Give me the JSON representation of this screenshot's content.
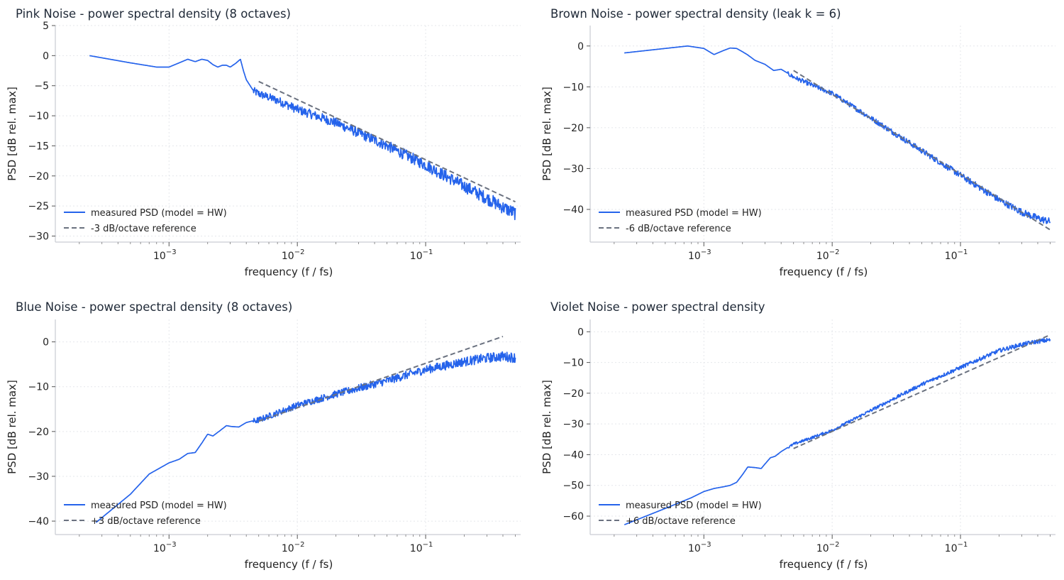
{
  "figure": {
    "xlabel": "frequency  (f / fs)",
    "ylabel": "PSD  [dB rel. max]",
    "xtick_labels": [
      "10",
      "10",
      "10"
    ],
    "xtick_exponents": [
      "−3",
      "−2",
      "−1"
    ],
    "xtick_values": [
      0.001,
      0.01,
      0.1
    ],
    "colors": {
      "measured": "#2563eb",
      "reference": "#6b7280",
      "grid": "#e5e7eb",
      "axis": "#c9ccd3",
      "text": "#222222",
      "title": "#1f2937"
    }
  },
  "chart_data": [
    {
      "type": "line",
      "title": "Pink Noise - power spectral density (8 octaves)",
      "xlabel": "frequency  (f / fs)",
      "ylabel": "PSD  [dB rel. max]",
      "xscale": "log",
      "xlim": [
        0.00013,
        0.55
      ],
      "ylim": [
        -31,
        5
      ],
      "yticks": [
        5,
        0,
        -5,
        -10,
        -15,
        -20,
        -25,
        -30
      ],
      "ytick_labels": [
        "5",
        "0",
        "−5",
        "−10",
        "−15",
        "−20",
        "−25",
        "−30"
      ],
      "grid": true,
      "legend_position": "lower-left",
      "series": [
        {
          "name": "measured PSD (model = HW)",
          "style": "solid",
          "noise_db": 1.4,
          "x": [
            0.00024,
            0.0005,
            0.0008,
            0.001,
            0.0012,
            0.0014,
            0.0016,
            0.0018,
            0.002,
            0.0022,
            0.0024,
            0.0026,
            0.0028,
            0.003,
            0.0033,
            0.0036,
            0.0038,
            0.004,
            0.0045,
            0.005,
            0.007,
            0.01,
            0.02,
            0.05,
            0.1,
            0.2,
            0.3,
            0.4,
            0.5
          ],
          "y": [
            0,
            -1.2,
            -1.9,
            -1.9,
            -1.2,
            -0.6,
            -1.0,
            -0.6,
            -0.8,
            -1.5,
            -1.9,
            -1.6,
            -1.6,
            -1.9,
            -1.3,
            -0.6,
            -2.5,
            -4.0,
            -5.7,
            -6.2,
            -7.3,
            -8.8,
            -11.0,
            -14.8,
            -18.0,
            -21.5,
            -23.5,
            -25.0,
            -26.0
          ]
        },
        {
          "name": "-3 dB/octave reference",
          "style": "dashed",
          "x": [
            0.005,
            0.5
          ],
          "y": [
            -4.3,
            -24.3
          ]
        }
      ]
    },
    {
      "type": "line",
      "title": "Brown Noise - power spectral density (leak k = 6)",
      "xlabel": "frequency  (f / fs)",
      "ylabel": "PSD  [dB rel. max]",
      "xscale": "log",
      "xlim": [
        0.00013,
        0.55
      ],
      "ylim": [
        -48,
        5
      ],
      "yticks": [
        0,
        -10,
        -20,
        -30,
        -40
      ],
      "ytick_labels": [
        "0",
        "−10",
        "−20",
        "−30",
        "−40"
      ],
      "grid": true,
      "legend_position": "lower-left",
      "series": [
        {
          "name": "measured PSD (model = HW)",
          "style": "solid",
          "noise_db": 1.1,
          "x": [
            0.00024,
            0.0005,
            0.00075,
            0.001,
            0.0012,
            0.0014,
            0.0016,
            0.0018,
            0.002,
            0.0022,
            0.0025,
            0.003,
            0.0035,
            0.004,
            0.005,
            0.007,
            0.01,
            0.02,
            0.05,
            0.1,
            0.2,
            0.3,
            0.4,
            0.5
          ],
          "y": [
            -1.7,
            -0.6,
            0,
            -0.6,
            -2.1,
            -1.2,
            -0.5,
            -0.6,
            -1.4,
            -2.2,
            -3.5,
            -4.5,
            -6.0,
            -5.7,
            -7.5,
            -9.5,
            -11.5,
            -17.5,
            -25.5,
            -31.5,
            -37.5,
            -40.5,
            -42.0,
            -42.8
          ]
        },
        {
          "name": "-6 dB/octave reference",
          "style": "dashed",
          "x": [
            0.005,
            0.5
          ],
          "y": [
            -6.0,
            -45.0
          ]
        }
      ]
    },
    {
      "type": "line",
      "title": "Blue Noise - power spectral density (8 octaves)",
      "xlabel": "frequency  (f / fs)",
      "ylabel": "PSD  [dB rel. max]",
      "xscale": "log",
      "xlim": [
        0.00013,
        0.55
      ],
      "ylim": [
        -43,
        5
      ],
      "yticks": [
        0,
        -10,
        -20,
        -30,
        -40
      ],
      "ytick_labels": [
        "0",
        "−10",
        "−20",
        "−30",
        "−40"
      ],
      "grid": true,
      "legend_position": "lower-left",
      "series": [
        {
          "name": "measured PSD (model = HW)",
          "style": "solid",
          "noise_db": 1.4,
          "x": [
            0.00027,
            0.0005,
            0.0007,
            0.001,
            0.0012,
            0.0014,
            0.0016,
            0.0018,
            0.002,
            0.0022,
            0.0025,
            0.0028,
            0.0031,
            0.0035,
            0.004,
            0.005,
            0.01,
            0.02,
            0.05,
            0.1,
            0.2,
            0.3,
            0.4,
            0.5
          ],
          "y": [
            -40.3,
            -34.0,
            -29.5,
            -27.0,
            -26.2,
            -24.9,
            -24.7,
            -22.6,
            -20.6,
            -21.0,
            -19.8,
            -18.7,
            -18.9,
            -19.0,
            -18.0,
            -17.3,
            -14.0,
            -11.5,
            -8.5,
            -6.0,
            -4.2,
            -3.4,
            -3.0,
            -3.3
          ]
        },
        {
          "name": "+3 dB/octave reference",
          "style": "dashed",
          "x": [
            0.005,
            0.4
          ],
          "y": [
            -17.7,
            1.2
          ]
        }
      ]
    },
    {
      "type": "line",
      "title": "Violet Noise - power spectral density",
      "xlabel": "frequency  (f / fs)",
      "ylabel": "PSD  [dB rel. max]",
      "xscale": "log",
      "xlim": [
        0.00013,
        0.55
      ],
      "ylim": [
        -66,
        4
      ],
      "yticks": [
        0,
        -10,
        -20,
        -30,
        -40,
        -50,
        -60
      ],
      "ytick_labels": [
        "0",
        "−10",
        "−20",
        "−30",
        "−40",
        "−50",
        "−60"
      ],
      "grid": true,
      "legend_position": "lower-left",
      "series": [
        {
          "name": "measured PSD (model = HW)",
          "style": "solid",
          "noise_db": 0.9,
          "x": [
            0.00024,
            0.0005,
            0.0008,
            0.001,
            0.0012,
            0.0014,
            0.0016,
            0.0018,
            0.002,
            0.0022,
            0.0025,
            0.0028,
            0.003,
            0.0033,
            0.0036,
            0.004,
            0.005,
            0.01,
            0.02,
            0.05,
            0.1,
            0.2,
            0.3,
            0.4,
            0.5
          ],
          "y": [
            -62.8,
            -57.5,
            -54.0,
            -52.0,
            -51.0,
            -50.5,
            -50.0,
            -49.0,
            -46.5,
            -44.0,
            -44.2,
            -44.5,
            -43.0,
            -41.0,
            -40.5,
            -39.0,
            -36.5,
            -32.0,
            -25.5,
            -17.0,
            -11.5,
            -6.0,
            -4.0,
            -3.0,
            -2.5
          ]
        },
        {
          "name": "+6 dB/octave reference",
          "style": "dashed",
          "x": [
            0.005,
            0.5
          ],
          "y": [
            -38.0,
            -1.0
          ]
        }
      ]
    }
  ]
}
